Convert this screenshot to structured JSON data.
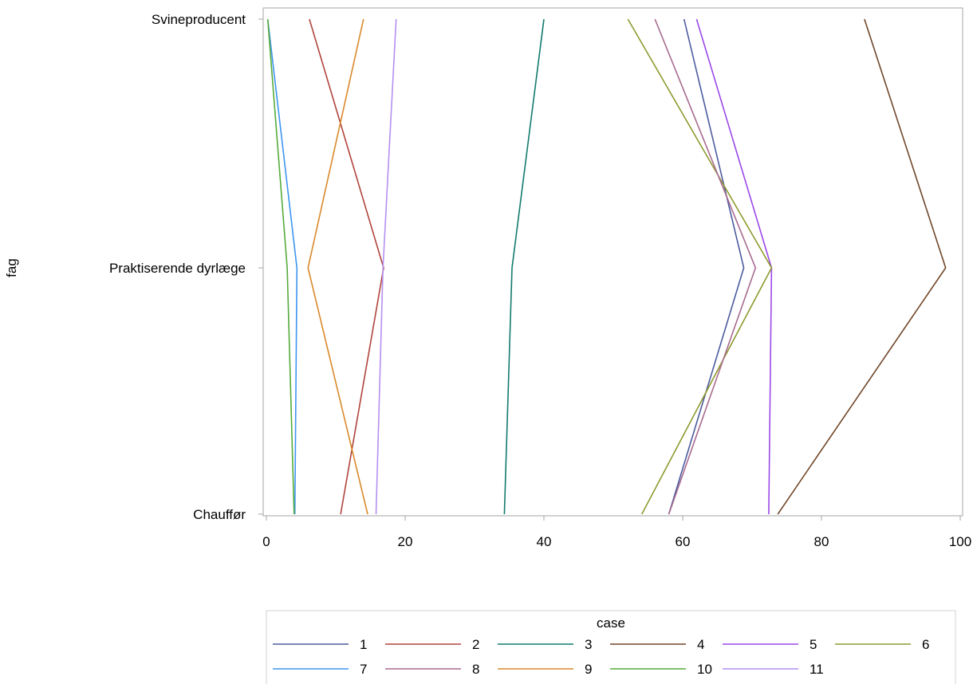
{
  "chart_data": {
    "type": "line",
    "title": "",
    "xlabel": "",
    "ylabel": "fag",
    "xlim": [
      0,
      100
    ],
    "x_ticks": [
      0,
      20,
      40,
      60,
      80,
      100
    ],
    "categories": [
      "Svineproducent",
      "Praktiserende dyrlæge",
      "Chauffør"
    ],
    "grid": false,
    "legend": {
      "title": "case",
      "position": "bottom"
    },
    "series": [
      {
        "name": "1",
        "color": "#4b5b9e",
        "x": [
          60.2,
          68.8,
          58.0
        ]
      },
      {
        "name": "2",
        "color": "#b0443c",
        "x": [
          6.2,
          16.9,
          10.7
        ]
      },
      {
        "name": "3",
        "color": "#127a6e",
        "x": [
          40.0,
          35.4,
          34.3
        ]
      },
      {
        "name": "4",
        "color": "#70472a",
        "x": [
          86.2,
          97.9,
          73.7
        ]
      },
      {
        "name": "5",
        "color": "#9b48e8",
        "x": [
          62.0,
          72.8,
          72.4
        ]
      },
      {
        "name": "6",
        "color": "#8e9a2e",
        "x": [
          52.1,
          72.8,
          54.1
        ]
      },
      {
        "name": "7",
        "color": "#3e95f0",
        "x": [
          0.2,
          4.4,
          4.1
        ]
      },
      {
        "name": "8",
        "color": "#a86a8f",
        "x": [
          56.0,
          70.5,
          58.0
        ]
      },
      {
        "name": "9",
        "color": "#d9892a",
        "x": [
          14.0,
          6.0,
          14.6
        ]
      },
      {
        "name": "10",
        "color": "#55ab3a",
        "x": [
          0.2,
          3.0,
          4.0
        ]
      },
      {
        "name": "11",
        "color": "#b490f0",
        "x": [
          18.7,
          16.8,
          15.8
        ]
      }
    ]
  }
}
